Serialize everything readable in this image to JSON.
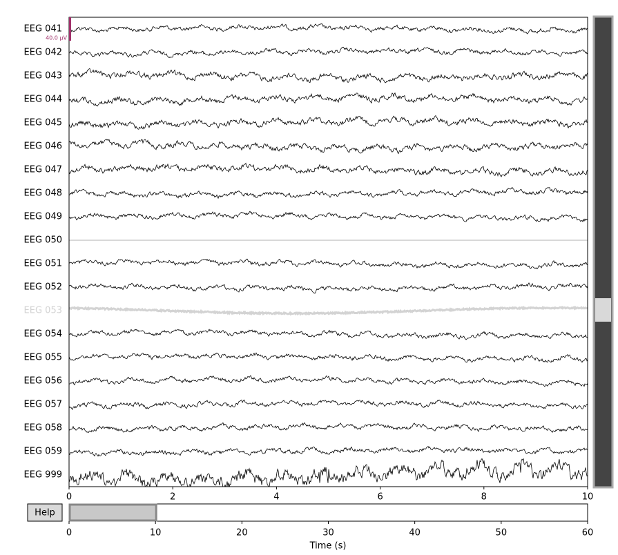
{
  "main_axis": {
    "channels": [
      {
        "name": "EEG 041",
        "label_color": "#000000",
        "trace_color": "#000000"
      },
      {
        "name": "EEG 042",
        "label_color": "#000000",
        "trace_color": "#000000"
      },
      {
        "name": "EEG 043",
        "label_color": "#000000",
        "trace_color": "#000000"
      },
      {
        "name": "EEG 044",
        "label_color": "#000000",
        "trace_color": "#000000"
      },
      {
        "name": "EEG 045",
        "label_color": "#000000",
        "trace_color": "#000000"
      },
      {
        "name": "EEG 046",
        "label_color": "#000000",
        "trace_color": "#000000"
      },
      {
        "name": "EEG 047",
        "label_color": "#000000",
        "trace_color": "#000000"
      },
      {
        "name": "EEG 048",
        "label_color": "#000000",
        "trace_color": "#000000"
      },
      {
        "name": "EEG 049",
        "label_color": "#000000",
        "trace_color": "#000000"
      },
      {
        "name": "EEG 050",
        "label_color": "#000000",
        "trace_color": "#999999"
      },
      {
        "name": "EEG 051",
        "label_color": "#000000",
        "trace_color": "#000000"
      },
      {
        "name": "EEG 052",
        "label_color": "#000000",
        "trace_color": "#000000"
      },
      {
        "name": "EEG 053",
        "label_color": "#d3d3d3",
        "trace_color": "#d3d3d3"
      },
      {
        "name": "EEG 054",
        "label_color": "#000000",
        "trace_color": "#000000"
      },
      {
        "name": "EEG 055",
        "label_color": "#000000",
        "trace_color": "#000000"
      },
      {
        "name": "EEG 056",
        "label_color": "#000000",
        "trace_color": "#000000"
      },
      {
        "name": "EEG 057",
        "label_color": "#000000",
        "trace_color": "#000000"
      },
      {
        "name": "EEG 058",
        "label_color": "#000000",
        "trace_color": "#000000"
      },
      {
        "name": "EEG 059",
        "label_color": "#000000",
        "trace_color": "#000000"
      },
      {
        "name": "EEG 999",
        "label_color": "#000000",
        "trace_color": "#000000"
      }
    ],
    "scale_bar_label": "40.0 µV",
    "scale_bar_color": "#a0306a",
    "xlim": [
      0,
      10
    ],
    "xticks": [
      0,
      2,
      4,
      6,
      8,
      10
    ]
  },
  "help_button": "Help",
  "time_axis": {
    "xlim": [
      0,
      60
    ],
    "xticks": [
      0,
      10,
      20,
      30,
      40,
      50,
      60
    ],
    "xlabel": "Time (s)",
    "view_window": [
      0,
      10
    ]
  }
}
